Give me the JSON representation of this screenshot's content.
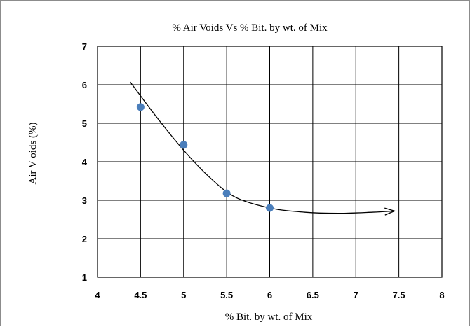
{
  "chart_data": {
    "type": "scatter",
    "title": "% Air  Voids Vs % Bit. by wt. of Mix",
    "xlabel": "% Bit.  by wt. of Mix",
    "ylabel": "Air V oids (%)",
    "xlim": [
      4,
      8
    ],
    "ylim": [
      1,
      7
    ],
    "xticks": [
      4,
      4.5,
      5,
      5.5,
      6,
      6.5,
      7,
      7.5,
      8
    ],
    "xtick_labels": [
      "4",
      "4.5",
      "5",
      "5.5",
      "6",
      "6.5",
      "7",
      "7.5",
      "8"
    ],
    "yticks": [
      1,
      2,
      3,
      4,
      5,
      6,
      7
    ],
    "ytick_labels": [
      "1",
      "2",
      "3",
      "4",
      "5",
      "6",
      "7"
    ],
    "grid": true,
    "series": [
      {
        "type": "scatter",
        "color": "#4a7ebb",
        "x": [
          4.5,
          5.0,
          5.5,
          6.0
        ],
        "y": [
          5.42,
          4.44,
          3.18,
          2.8
        ]
      }
    ],
    "trendline": {
      "type": "curve",
      "color": "#000000",
      "arrow_end": true,
      "x": [
        4.38,
        4.7,
        5.0,
        5.3,
        5.6,
        6.0,
        6.4,
        6.8,
        7.2,
        7.45
      ],
      "y": [
        6.07,
        5.12,
        4.3,
        3.6,
        3.08,
        2.8,
        2.69,
        2.66,
        2.69,
        2.72
      ]
    }
  }
}
